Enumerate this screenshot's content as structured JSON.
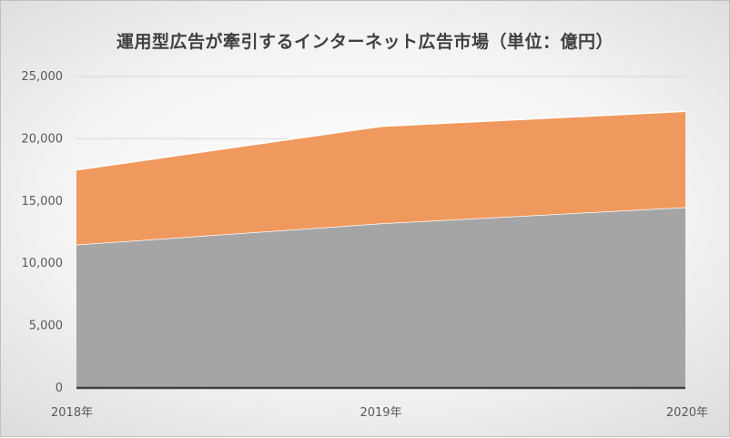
{
  "chart_data": {
    "type": "area",
    "title": "運用型広告が牽引するインターネット広告市場（単位：億円）",
    "categories": [
      "2018年",
      "2019年",
      "2020年"
    ],
    "stacked": true,
    "series": [
      {
        "values": [
          11500,
          13200,
          14500
        ],
        "color": "#a5a5a5"
      },
      {
        "values": [
          6000,
          7800,
          7700
        ],
        "color": "#f0995e"
      }
    ],
    "ylim": [
      0,
      25000
    ],
    "yticks": [
      0,
      5000,
      10000,
      15000,
      20000,
      25000
    ],
    "ytick_labels": [
      "0",
      "5,000",
      "10,000",
      "15,000",
      "20,000",
      "25,000"
    ],
    "grid": true,
    "legend": "none"
  }
}
